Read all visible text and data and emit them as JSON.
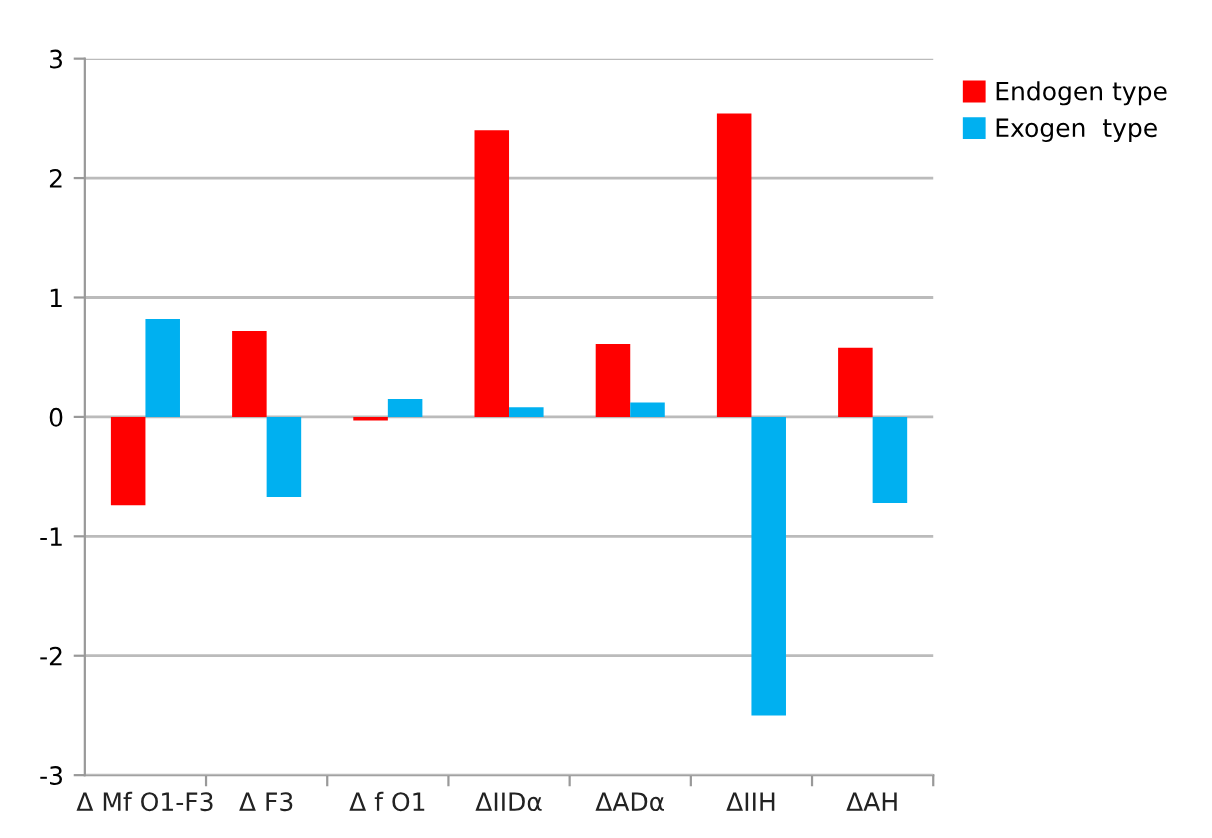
{
  "chart_data": {
    "type": "bar",
    "categories": [
      "Δ Mf O1-F3",
      "Δ F3",
      "Δ f O1",
      "ΔIIDα",
      "ΔADα",
      "ΔIIH",
      "ΔAH"
    ],
    "series": [
      {
        "name": "Endogen type",
        "color": "#ff0000",
        "values": [
          -0.74,
          0.72,
          -0.03,
          2.4,
          0.61,
          2.54,
          0.58
        ]
      },
      {
        "name": "Exogen  type",
        "color": "#00b0f0",
        "values": [
          0.82,
          -0.67,
          0.15,
          0.08,
          0.12,
          -2.5,
          -0.72
        ]
      }
    ],
    "ylim": [
      -3,
      3
    ],
    "yticks": [
      -3,
      -2,
      -1,
      0,
      1,
      2,
      3
    ],
    "grid": "y",
    "legend": "right"
  }
}
